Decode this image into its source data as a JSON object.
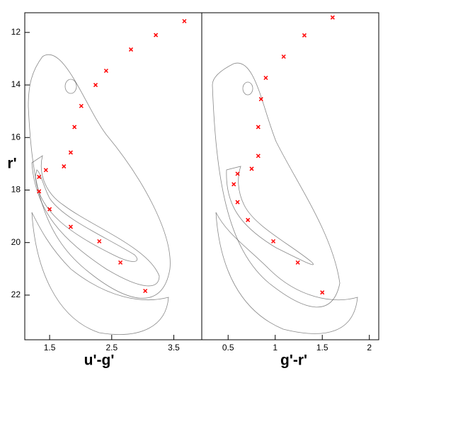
{
  "chart_data": [
    {
      "type": "scatter",
      "xlabel": "u'-g'",
      "ylabel": "r'",
      "color": "#ff0000",
      "y_inverted": true,
      "x": [
        3.04,
        2.64,
        2.3,
        1.84,
        1.5,
        1.33,
        1.33,
        1.44,
        1.73,
        1.84,
        1.9,
        2.01,
        2.24,
        2.41,
        2.81,
        3.21,
        3.67
      ],
      "y": [
        21.84,
        20.76,
        19.95,
        19.4,
        18.73,
        18.05,
        17.5,
        17.24,
        17.1,
        16.57,
        15.6,
        14.8,
        14.0,
        13.46,
        12.65,
        12.1,
        11.57
      ],
      "xlim": [
        1.1,
        3.95
      ],
      "ylim": [
        11.25,
        23.7
      ],
      "xticks": [
        1.5,
        2.5,
        3.5
      ],
      "yticks": [
        12,
        14,
        16,
        18,
        20,
        22
      ]
    },
    {
      "type": "scatter",
      "xlabel": "g'-r'",
      "color": "#ff0000",
      "y_inverted": true,
      "x": [
        1.5,
        1.24,
        0.98,
        0.71,
        0.6,
        0.56,
        0.6,
        0.75,
        0.82,
        0.82,
        0.85,
        0.9,
        1.09,
        1.31,
        1.61
      ],
      "y": [
        21.9,
        20.76,
        19.95,
        19.14,
        18.46,
        17.78,
        17.38,
        17.19,
        16.7,
        15.6,
        14.54,
        13.73,
        12.92,
        12.11,
        11.43
      ],
      "xlim": [
        0.22,
        2.1
      ],
      "ylim": [
        11.25,
        23.7
      ],
      "xticks": [
        0.5,
        1.0,
        1.5,
        2.0
      ]
    }
  ]
}
